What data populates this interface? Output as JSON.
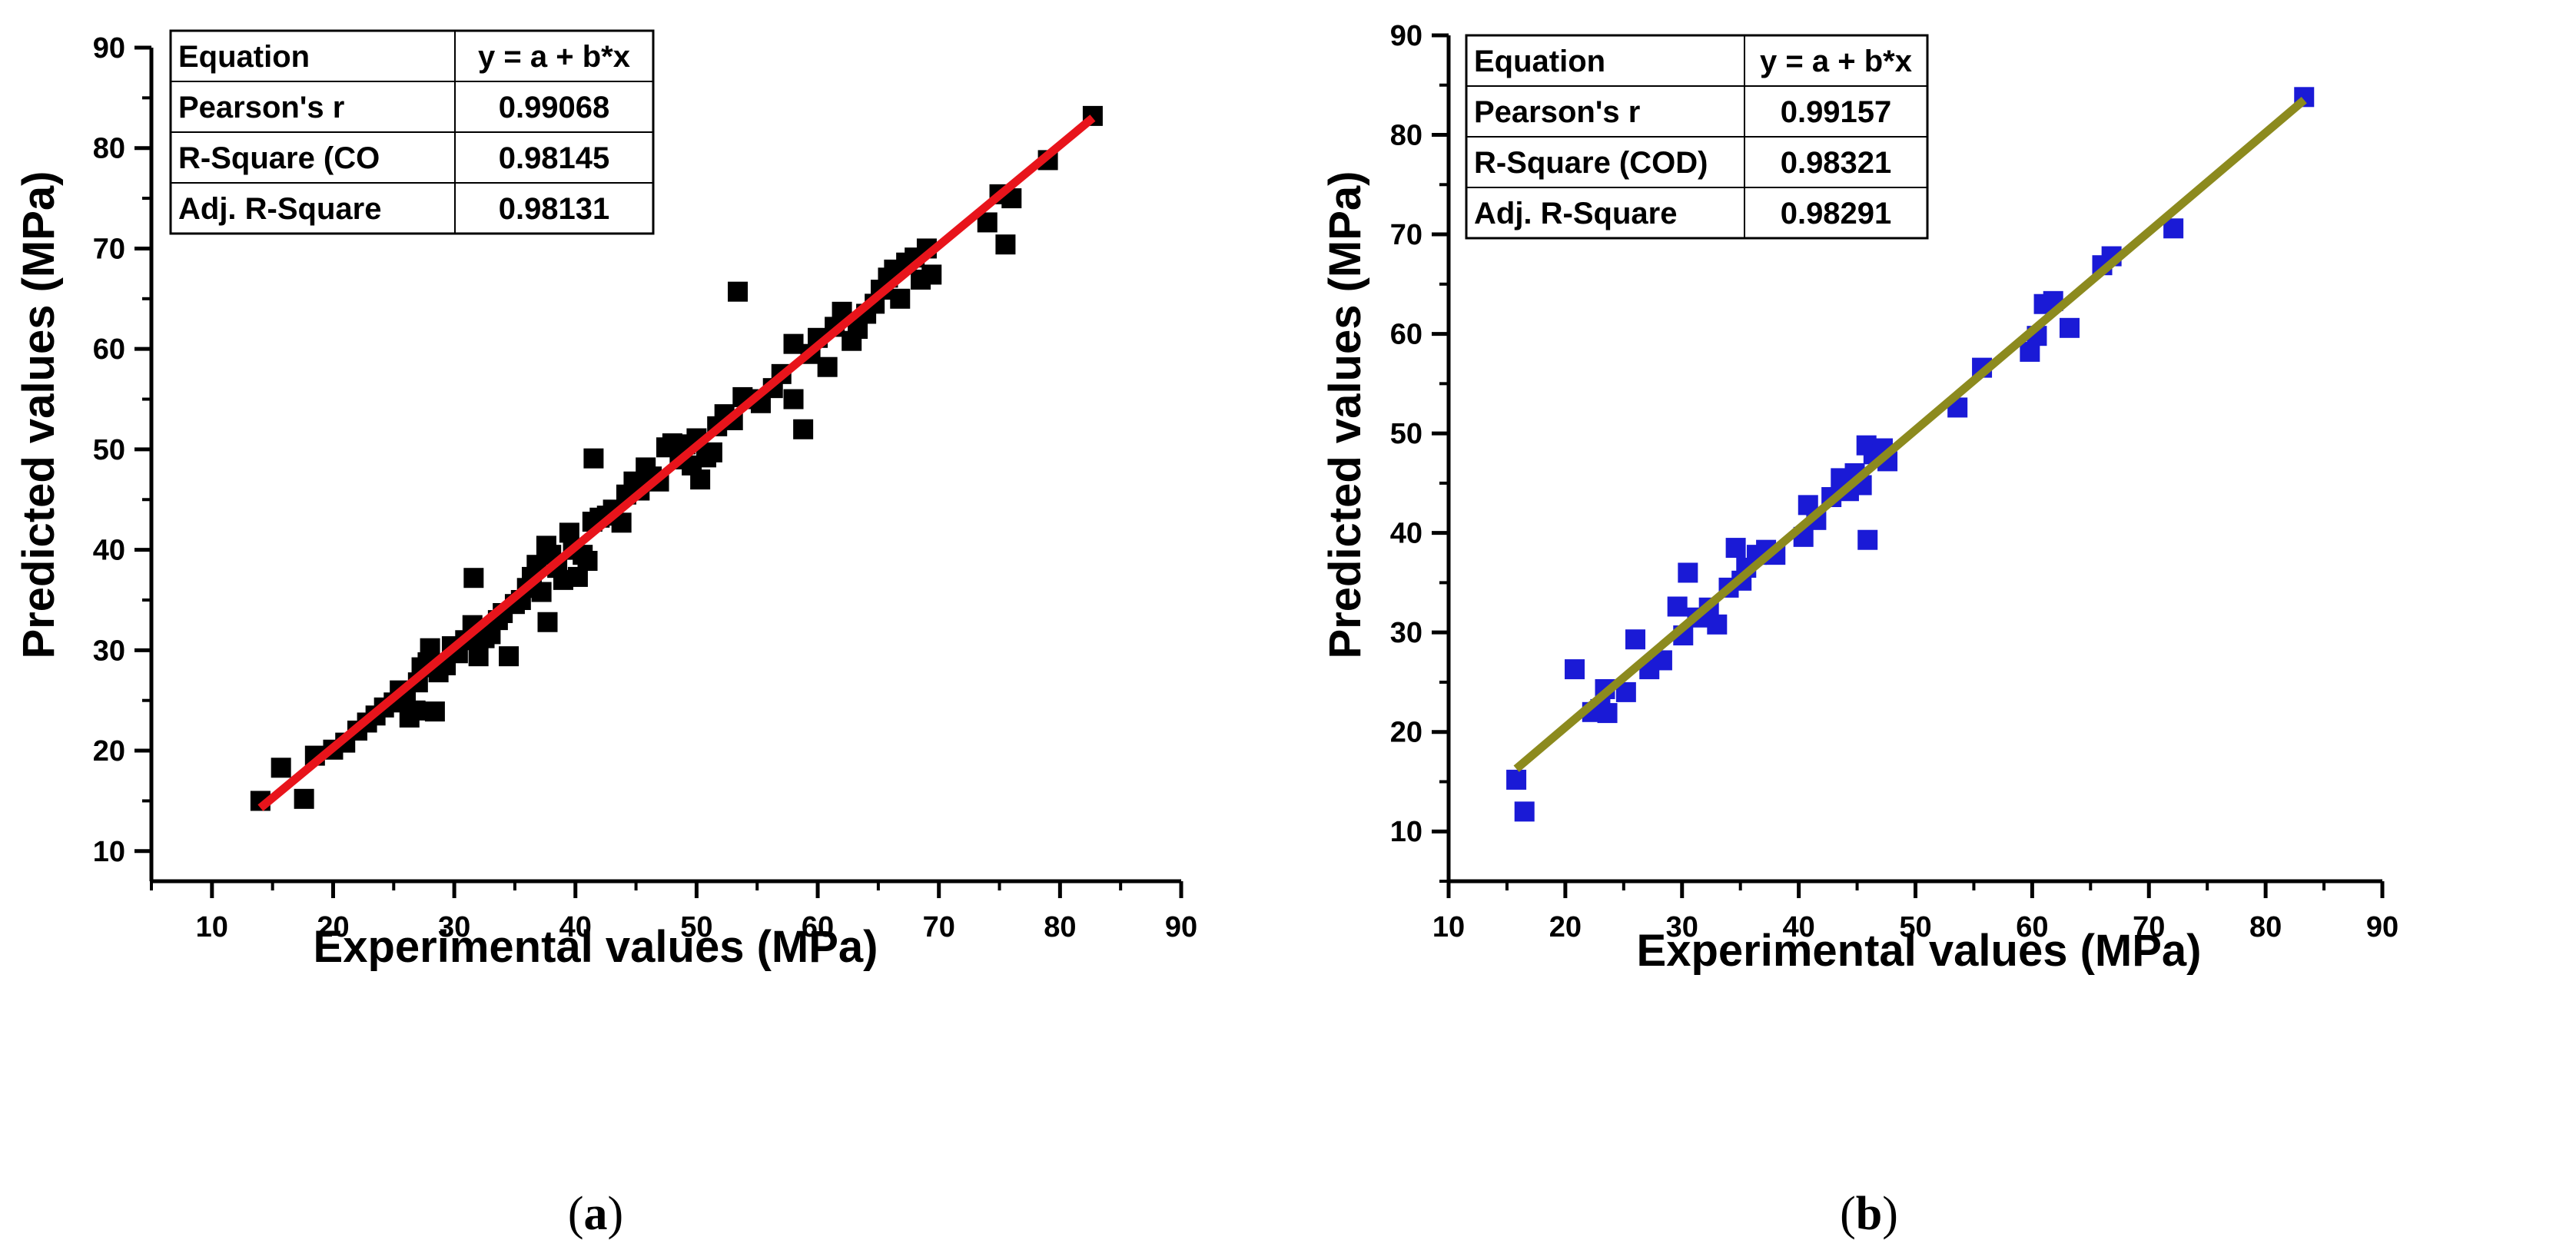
{
  "chart_data": [
    {
      "type": "scatter",
      "panel_label": "a",
      "xlabel": "Experimental values (MPa)",
      "ylabel": "Predicted values (MPa)",
      "xlim": [
        5,
        90
      ],
      "ylim": [
        7,
        90
      ],
      "xticks": [
        10,
        20,
        30,
        40,
        50,
        60,
        70,
        80,
        90
      ],
      "yticks": [
        10,
        20,
        30,
        40,
        50,
        60,
        70,
        80,
        90
      ],
      "marker_color": "#000000",
      "fit_line": {
        "x": [
          14,
          82.7
        ],
        "y": [
          14.3,
          83.0
        ],
        "color": "#e8141b"
      },
      "stats_table": [
        [
          "Equation",
          "y = a + b*x"
        ],
        [
          "Pearson's r",
          "0.99068"
        ],
        [
          "R-Square (CO",
          "0.98145"
        ],
        [
          "Adj. R-Square",
          "0.98131"
        ]
      ],
      "points": [
        [
          14,
          15
        ],
        [
          15.7,
          18.3
        ],
        [
          17.6,
          15.2
        ],
        [
          18.5,
          19.5
        ],
        [
          20,
          20.1
        ],
        [
          21,
          20.8
        ],
        [
          22,
          22
        ],
        [
          22.8,
          22.8
        ],
        [
          23.5,
          23.5
        ],
        [
          24.2,
          24.3
        ],
        [
          25,
          24.8
        ],
        [
          25.5,
          26
        ],
        [
          26,
          25.2
        ],
        [
          26.3,
          23.3
        ],
        [
          26.8,
          24
        ],
        [
          27,
          26.8
        ],
        [
          27.3,
          28.3
        ],
        [
          27.8,
          28.8
        ],
        [
          28,
          30.2
        ],
        [
          28.4,
          23.9
        ],
        [
          28.7,
          27.8
        ],
        [
          29.3,
          28.5
        ],
        [
          29.8,
          30.4
        ],
        [
          30.3,
          29.7
        ],
        [
          30.9,
          31
        ],
        [
          31.5,
          32.5
        ],
        [
          31.6,
          37.2
        ],
        [
          32,
          29.4
        ],
        [
          32.5,
          31.2
        ],
        [
          33,
          31.6
        ],
        [
          33.6,
          33
        ],
        [
          34,
          33.7
        ],
        [
          34.5,
          29.4
        ],
        [
          35,
          34.6
        ],
        [
          35.5,
          35
        ],
        [
          36,
          36.2
        ],
        [
          36.4,
          37.3
        ],
        [
          36.8,
          38.5
        ],
        [
          37.2,
          35.8
        ],
        [
          37.6,
          40.4
        ],
        [
          37.7,
          32.8
        ],
        [
          38,
          39.5
        ],
        [
          38.5,
          38.2
        ],
        [
          39,
          37
        ],
        [
          39.5,
          41.7
        ],
        [
          39.8,
          40
        ],
        [
          40.2,
          37.3
        ],
        [
          40.6,
          39.5
        ],
        [
          41,
          38.9
        ],
        [
          41.4,
          42.8
        ],
        [
          41.5,
          49.1
        ],
        [
          42,
          43.2
        ],
        [
          42.6,
          43.4
        ],
        [
          43.1,
          44
        ],
        [
          43.8,
          42.7
        ],
        [
          44.2,
          45.5
        ],
        [
          44.8,
          46.8
        ],
        [
          45.3,
          45.9
        ],
        [
          45.8,
          48.2
        ],
        [
          46.3,
          47.3
        ],
        [
          46.9,
          46.8
        ],
        [
          47.5,
          50.2
        ],
        [
          48,
          50.6
        ],
        [
          48.6,
          49
        ],
        [
          49.1,
          50.5
        ],
        [
          49.6,
          48.4
        ],
        [
          50,
          51.1
        ],
        [
          50.3,
          47
        ],
        [
          50.8,
          49.2
        ],
        [
          51.3,
          49.7
        ],
        [
          51.7,
          52.3
        ],
        [
          52.3,
          53.5
        ],
        [
          53,
          52.9
        ],
        [
          53.4,
          65.7
        ],
        [
          53.8,
          55.2
        ],
        [
          54.3,
          55
        ],
        [
          55.3,
          54.6
        ],
        [
          56.3,
          56.1
        ],
        [
          57,
          57.5
        ],
        [
          58,
          55
        ],
        [
          58,
          60.5
        ],
        [
          58.8,
          52
        ],
        [
          59.4,
          59.5
        ],
        [
          60,
          61.1
        ],
        [
          60.8,
          58.2
        ],
        [
          61.4,
          62.2
        ],
        [
          62,
          63.7
        ],
        [
          62.8,
          60.8
        ],
        [
          63.3,
          62
        ],
        [
          64,
          63.5
        ],
        [
          64.7,
          64.5
        ],
        [
          65.2,
          65.9
        ],
        [
          65.8,
          67.1
        ],
        [
          66.3,
          67.9
        ],
        [
          66.8,
          65
        ],
        [
          67.3,
          68.6
        ],
        [
          68,
          69.1
        ],
        [
          68.5,
          66.9
        ],
        [
          69,
          70
        ],
        [
          69.4,
          67.4
        ],
        [
          74,
          72.6
        ],
        [
          75,
          75.4
        ],
        [
          75.5,
          70.4
        ],
        [
          76,
          75
        ],
        [
          79,
          78.8
        ],
        [
          82.7,
          83.2
        ]
      ]
    },
    {
      "type": "scatter",
      "panel_label": "b",
      "xlabel": "Experimental values (MPa)",
      "ylabel": "Predicted values (MPa)",
      "xlim": [
        10,
        90
      ],
      "ylim": [
        5,
        90
      ],
      "xticks": [
        10,
        20,
        30,
        40,
        50,
        60,
        70,
        80,
        90
      ],
      "yticks": [
        10,
        20,
        30,
        40,
        50,
        60,
        70,
        80,
        90
      ],
      "marker_color": "#1a1ad6",
      "fit_line": {
        "x": [
          15.8,
          83.3
        ],
        "y": [
          16.3,
          83.5
        ],
        "color": "#8c8a1e"
      },
      "stats_table": [
        [
          "Equation",
          "y = a + b*x"
        ],
        [
          "Pearson's r",
          "0.99157"
        ],
        [
          "R-Square (COD)",
          "0.98321"
        ],
        [
          "Adj. R-Square",
          "0.98291"
        ]
      ],
      "points": [
        [
          15.8,
          15.2
        ],
        [
          16.5,
          12
        ],
        [
          20.8,
          26.3
        ],
        [
          22.3,
          22
        ],
        [
          23,
          22.3
        ],
        [
          23.6,
          21.9
        ],
        [
          23.4,
          24.3
        ],
        [
          25.2,
          24
        ],
        [
          26,
          29.3
        ],
        [
          27.2,
          26.3
        ],
        [
          28.3,
          27.2
        ],
        [
          29.6,
          32.6
        ],
        [
          30.1,
          29.7
        ],
        [
          30.5,
          36
        ],
        [
          31.3,
          31.5
        ],
        [
          32.3,
          32.5
        ],
        [
          33,
          30.8
        ],
        [
          34,
          34.5
        ],
        [
          34.6,
          38.5
        ],
        [
          35.1,
          35.2
        ],
        [
          35.5,
          36.5
        ],
        [
          36.4,
          37.8
        ],
        [
          37.2,
          38.3
        ],
        [
          38,
          37.8
        ],
        [
          40.4,
          39.6
        ],
        [
          40.8,
          42.8
        ],
        [
          41.5,
          41.3
        ],
        [
          42.8,
          43.6
        ],
        [
          43.6,
          45.5
        ],
        [
          44.3,
          44.2
        ],
        [
          44.8,
          46
        ],
        [
          45.4,
          44.8
        ],
        [
          45.8,
          48.8
        ],
        [
          45.9,
          39.3
        ],
        [
          46.4,
          47.9
        ],
        [
          47.2,
          48.5
        ],
        [
          47.6,
          47.2
        ],
        [
          53.6,
          52.6
        ],
        [
          55.7,
          56.6
        ],
        [
          59.8,
          58.2
        ],
        [
          60.4,
          59.8
        ],
        [
          61,
          63
        ],
        [
          61.8,
          63.3
        ],
        [
          63.2,
          60.6
        ],
        [
          66,
          66.9
        ],
        [
          66.8,
          67.8
        ],
        [
          72.1,
          70.6
        ],
        [
          83.3,
          83.8
        ]
      ]
    }
  ]
}
